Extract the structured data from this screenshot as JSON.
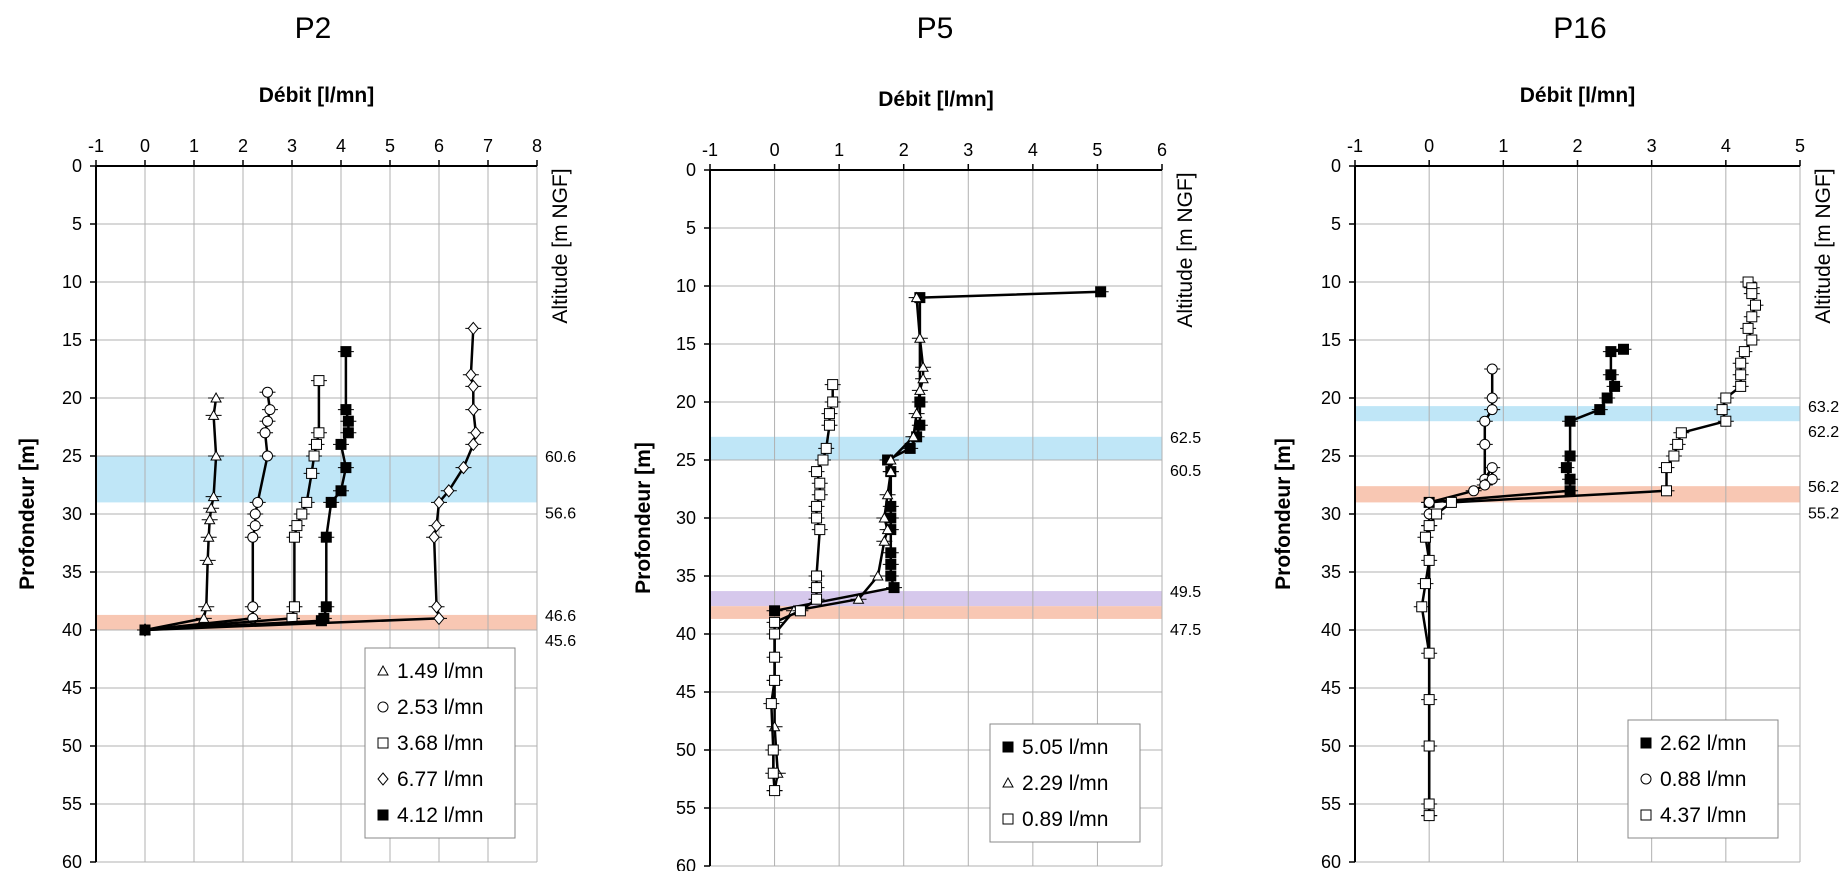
{
  "chart_data": [
    {
      "type": "line",
      "title": "P2",
      "xlabel": "Débit [l/mn]",
      "ylabel": "Profondeur [m]",
      "y2label": "Altitude [m NGF]",
      "xlim": [
        -1,
        8
      ],
      "ylim": [
        60,
        0
      ],
      "x_ticks": [
        "-1",
        "0",
        "1",
        "2",
        "3",
        "4",
        "5",
        "6",
        "7",
        "8"
      ],
      "y_ticks": [
        "0",
        "5",
        "10",
        "15",
        "20",
        "25",
        "30",
        "35",
        "40",
        "45",
        "50",
        "55",
        "60"
      ],
      "grid": true,
      "legend_position": "bottom-right",
      "bands": [
        {
          "from": 25,
          "to": 29,
          "color": "#bfe6f7",
          "labels": [
            "60.6",
            "56.6"
          ]
        },
        {
          "from": 38.7,
          "to": 40,
          "color": "#f8c7b3",
          "labels": [
            "46.6",
            "45.6"
          ]
        }
      ],
      "series": [
        {
          "name": "1.49 l/mn",
          "marker": "triangle",
          "x": [
            1.45,
            1.4,
            1.45,
            1.4,
            1.35,
            1.32,
            1.3,
            1.28,
            1.25,
            1.2,
            0
          ],
          "y": [
            20,
            21.5,
            25,
            28.5,
            29.5,
            30.5,
            32,
            34,
            38,
            39,
            40
          ]
        },
        {
          "name": "2.53 l/mn",
          "marker": "circle",
          "x": [
            2.5,
            2.55,
            2.5,
            2.45,
            2.5,
            2.3,
            2.25,
            2.25,
            2.2,
            2.2,
            2.2,
            0
          ],
          "y": [
            19.5,
            21,
            22,
            23,
            25,
            29,
            30,
            31,
            32,
            38,
            39,
            40
          ]
        },
        {
          "name": "3.68 l/mn",
          "marker": "square",
          "x": [
            3.55,
            3.55,
            3.5,
            3.45,
            3.4,
            3.3,
            3.2,
            3.1,
            3.05,
            3.05,
            3.0,
            0
          ],
          "y": [
            18.5,
            23,
            24,
            25,
            26.5,
            29,
            30,
            31,
            32,
            38,
            39,
            40
          ]
        },
        {
          "name": "6.77 l/mn",
          "marker": "diamond",
          "x": [
            6.7,
            6.65,
            6.7,
            6.7,
            6.75,
            6.7,
            6.5,
            6.2,
            6.0,
            5.95,
            5.9,
            5.95,
            6.0,
            0
          ],
          "y": [
            14,
            18,
            19,
            21,
            23,
            24,
            26,
            28,
            29,
            31,
            32,
            38,
            39,
            40
          ]
        },
        {
          "name": "4.12 l/mn",
          "marker": "filled-square",
          "x": [
            4.1,
            4.1,
            4.15,
            4.15,
            4.0,
            4.1,
            4.0,
            3.8,
            3.7,
            3.7,
            3.65,
            3.6,
            0
          ],
          "y": [
            16,
            21,
            22,
            23,
            24,
            26,
            28,
            29,
            32,
            38,
            39,
            39.2,
            40
          ]
        }
      ]
    },
    {
      "type": "line",
      "title": "P5",
      "xlabel": "Débit [l/mn]",
      "ylabel": "Profondeur [m]",
      "y2label": "Altitude [m NGF]",
      "xlim": [
        -1,
        6
      ],
      "ylim": [
        60,
        0
      ],
      "x_ticks": [
        "-1",
        "0",
        "1",
        "2",
        "3",
        "4",
        "5",
        "6"
      ],
      "y_ticks": [
        "0",
        "5",
        "10",
        "15",
        "20",
        "25",
        "30",
        "35",
        "40",
        "45",
        "50",
        "55",
        "60"
      ],
      "grid": true,
      "legend_position": "bottom-right",
      "bands": [
        {
          "from": 23,
          "to": 25,
          "color": "#bfe6f7",
          "labels": [
            "62.5",
            "60.5"
          ]
        },
        {
          "from": 36.3,
          "to": 37.6,
          "color": "#d6c8ec",
          "labels": [
            "49.5",
            ""
          ]
        },
        {
          "from": 37.6,
          "to": 38.7,
          "color": "#f8c7b3",
          "labels": [
            "",
            "47.5"
          ]
        }
      ],
      "series": [
        {
          "name": "5.05 l/mn",
          "marker": "filled-square",
          "x": [
            5.05,
            2.25,
            2.25,
            2.25,
            2.2,
            2.1,
            1.75,
            1.8,
            1.8,
            1.8,
            1.8,
            1.8,
            1.8,
            1.8,
            1.85,
            0
          ],
          "y": [
            10.5,
            11,
            20,
            22,
            23,
            24,
            25,
            26,
            29,
            30,
            31,
            33,
            34,
            35,
            36,
            38
          ]
        },
        {
          "name": "2.29 l/mn",
          "marker": "triangle",
          "x": [
            2.2,
            2.25,
            2.3,
            2.3,
            2.25,
            2.2,
            2.15,
            1.8,
            1.8,
            1.75,
            1.7,
            1.75,
            1.7,
            1.6,
            1.3,
            0.3,
            0.0,
            0.0,
            0.0,
            0.05,
            0.0
          ],
          "y": [
            11,
            14.5,
            17,
            18,
            19,
            21,
            23,
            25,
            26,
            28,
            30,
            31,
            32,
            35,
            37,
            38,
            40,
            44,
            48,
            52,
            53.5
          ]
        },
        {
          "name": "0.89 l/mn",
          "marker": "square",
          "x": [
            0.9,
            0.9,
            0.85,
            0.85,
            0.8,
            0.75,
            0.65,
            0.7,
            0.7,
            0.65,
            0.65,
            0.7,
            0.65,
            0.65,
            0.65,
            0.4,
            0.0,
            0.0,
            0.0,
            0.0,
            -0.05,
            -0.02,
            -0.02,
            0.0
          ],
          "y": [
            18.5,
            20,
            21,
            22,
            24,
            25,
            26,
            27,
            28,
            29,
            30,
            31,
            35,
            36,
            37,
            38,
            39,
            40,
            42,
            44,
            46,
            50,
            52,
            53.5
          ]
        }
      ]
    },
    {
      "type": "line",
      "title": "P16",
      "xlabel": "Débit [l/mn]",
      "ylabel": "Profondeur [m]",
      "y2label": "Altitude [m NGF]",
      "xlim": [
        -1,
        5
      ],
      "ylim": [
        60,
        0
      ],
      "x_ticks": [
        "-1",
        "0",
        "1",
        "2",
        "3",
        "4",
        "5"
      ],
      "y_ticks": [
        "0",
        "5",
        "10",
        "15",
        "20",
        "25",
        "30",
        "35",
        "40",
        "45",
        "50",
        "55",
        "60"
      ],
      "grid": true,
      "legend_position": "bottom-right",
      "bands": [
        {
          "from": 20.7,
          "to": 22,
          "color": "#bfe6f7",
          "labels": [
            "63.2",
            "62.2"
          ]
        },
        {
          "from": 27.6,
          "to": 29,
          "color": "#f8c7b3",
          "labels": [
            "56.2",
            "55.2"
          ]
        }
      ],
      "series": [
        {
          "name": "2.62 l/mn",
          "marker": "filled-square",
          "x": [
            2.62,
            2.45,
            2.45,
            2.5,
            2.4,
            2.3,
            1.9,
            1.9,
            1.85,
            1.9,
            1.9,
            0.0
          ],
          "y": [
            15.8,
            16,
            18,
            19,
            20,
            21,
            22,
            25,
            26,
            27,
            28,
            29
          ]
        },
        {
          "name": "0.88 l/mn",
          "marker": "circle",
          "x": [
            0.85,
            0.85,
            0.85,
            0.75,
            0.75,
            0.75,
            0.85,
            0.85,
            0.75,
            0.6,
            0.0,
            0.0,
            0.0,
            0.0
          ],
          "y": [
            17.5,
            20,
            21,
            22,
            24,
            27,
            26,
            27,
            27.5,
            28,
            29,
            30,
            31,
            56
          ]
        },
        {
          "name": "4.37 l/mn",
          "marker": "square",
          "x": [
            4.3,
            4.35,
            4.35,
            4.4,
            4.35,
            4.3,
            4.35,
            4.25,
            4.2,
            4.2,
            4.2,
            4.0,
            3.95,
            4.0,
            3.4,
            3.35,
            3.3,
            3.2,
            3.2,
            0.3,
            0.1,
            0.0,
            -0.05,
            0.0,
            -0.05,
            -0.1,
            0.0,
            0.0,
            0.0,
            0.0,
            0.0
          ],
          "y": [
            10,
            10.5,
            11,
            12,
            13,
            14,
            15,
            16,
            17,
            18,
            19,
            20,
            21,
            22,
            23,
            24,
            25,
            26,
            28,
            29,
            30,
            31,
            32,
            34,
            36,
            38,
            42,
            46,
            50,
            55,
            56
          ]
        }
      ]
    }
  ]
}
